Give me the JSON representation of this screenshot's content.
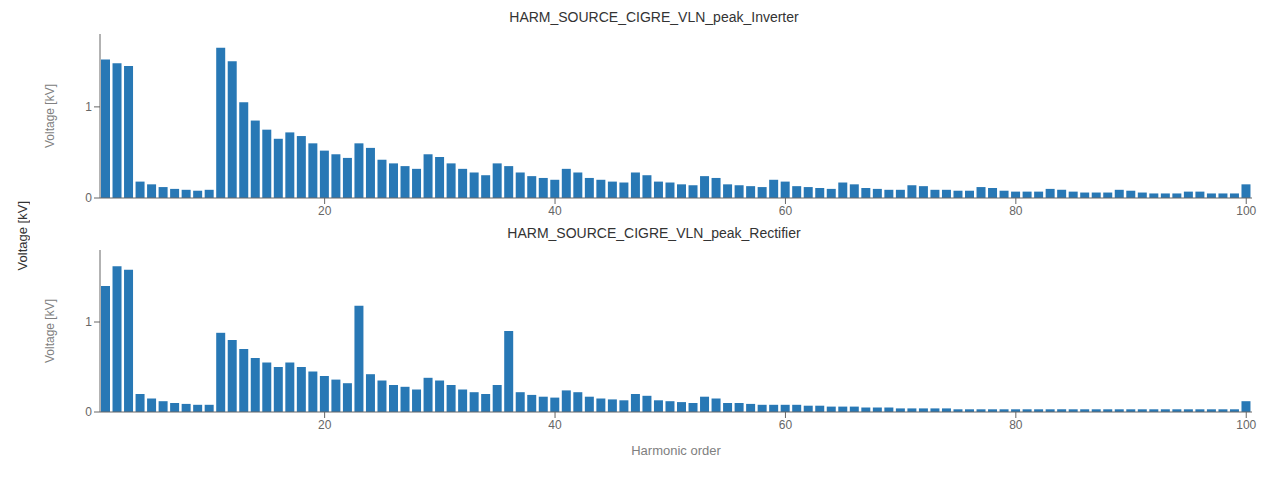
{
  "ylabel": "Voltage [kV]",
  "chart_data": [
    {
      "type": "bar",
      "title": "HARM_SOURCE_CIGRE_VLN_peak_Inverter",
      "ylabel": "Voltage [kV]",
      "x": [
        1,
        2,
        3,
        4,
        5,
        6,
        7,
        8,
        9,
        10,
        11,
        12,
        13,
        14,
        15,
        16,
        17,
        18,
        19,
        20,
        21,
        22,
        23,
        24,
        25,
        26,
        27,
        28,
        29,
        30,
        31,
        32,
        33,
        34,
        35,
        36,
        37,
        38,
        39,
        40,
        41,
        42,
        43,
        44,
        45,
        46,
        47,
        48,
        49,
        50,
        51,
        52,
        53,
        54,
        55,
        56,
        57,
        58,
        59,
        60,
        61,
        62,
        63,
        64,
        65,
        66,
        67,
        68,
        69,
        70,
        71,
        72,
        73,
        74,
        75,
        76,
        77,
        78,
        79,
        80,
        81,
        82,
        83,
        84,
        85,
        86,
        87,
        88,
        89,
        90,
        91,
        92,
        93,
        94,
        95,
        96,
        97,
        98,
        99,
        100
      ],
      "values": [
        1.52,
        1.48,
        1.45,
        0.18,
        0.15,
        0.12,
        0.1,
        0.09,
        0.08,
        0.09,
        1.65,
        1.5,
        1.05,
        0.85,
        0.75,
        0.65,
        0.72,
        0.68,
        0.6,
        0.52,
        0.48,
        0.44,
        0.6,
        0.55,
        0.42,
        0.38,
        0.35,
        0.32,
        0.48,
        0.45,
        0.38,
        0.32,
        0.28,
        0.25,
        0.38,
        0.35,
        0.28,
        0.24,
        0.22,
        0.2,
        0.32,
        0.28,
        0.22,
        0.2,
        0.18,
        0.17,
        0.28,
        0.25,
        0.18,
        0.17,
        0.15,
        0.14,
        0.24,
        0.22,
        0.15,
        0.14,
        0.13,
        0.12,
        0.2,
        0.18,
        0.13,
        0.12,
        0.11,
        0.1,
        0.17,
        0.15,
        0.11,
        0.1,
        0.09,
        0.09,
        0.14,
        0.13,
        0.09,
        0.09,
        0.08,
        0.08,
        0.12,
        0.11,
        0.08,
        0.07,
        0.07,
        0.07,
        0.1,
        0.09,
        0.07,
        0.06,
        0.06,
        0.06,
        0.09,
        0.08,
        0.06,
        0.05,
        0.05,
        0.05,
        0.07,
        0.07,
        0.05,
        0.05,
        0.05,
        0.15
      ],
      "color": "#2878b5",
      "xlim": [
        0.5,
        100.5
      ],
      "xticks": [
        20,
        40,
        60,
        80,
        100
      ],
      "ylim": [
        0,
        1.8
      ],
      "yticks": [
        0,
        1
      ],
      "grid": false
    },
    {
      "type": "bar",
      "title": "HARM_SOURCE_CIGRE_VLN_peak_Rectifier",
      "xlabel": "Harmonic order",
      "ylabel": "Voltage [kV]",
      "x": [
        1,
        2,
        3,
        4,
        5,
        6,
        7,
        8,
        9,
        10,
        11,
        12,
        13,
        14,
        15,
        16,
        17,
        18,
        19,
        20,
        21,
        22,
        23,
        24,
        25,
        26,
        27,
        28,
        29,
        30,
        31,
        32,
        33,
        34,
        35,
        36,
        37,
        38,
        39,
        40,
        41,
        42,
        43,
        44,
        45,
        46,
        47,
        48,
        49,
        50,
        51,
        52,
        53,
        54,
        55,
        56,
        57,
        58,
        59,
        60,
        61,
        62,
        63,
        64,
        65,
        66,
        67,
        68,
        69,
        70,
        71,
        72,
        73,
        74,
        75,
        76,
        77,
        78,
        79,
        80,
        81,
        82,
        83,
        84,
        85,
        86,
        87,
        88,
        89,
        90,
        91,
        92,
        93,
        94,
        95,
        96,
        97,
        98,
        99,
        100
      ],
      "values": [
        1.4,
        1.62,
        1.58,
        0.2,
        0.15,
        0.12,
        0.1,
        0.09,
        0.08,
        0.08,
        0.88,
        0.8,
        0.7,
        0.6,
        0.55,
        0.5,
        0.55,
        0.5,
        0.45,
        0.4,
        0.36,
        0.32,
        1.18,
        0.42,
        0.35,
        0.3,
        0.28,
        0.25,
        0.38,
        0.35,
        0.3,
        0.25,
        0.22,
        0.2,
        0.3,
        0.9,
        0.22,
        0.19,
        0.17,
        0.16,
        0.24,
        0.22,
        0.17,
        0.15,
        0.14,
        0.13,
        0.2,
        0.18,
        0.13,
        0.12,
        0.11,
        0.1,
        0.17,
        0.15,
        0.1,
        0.1,
        0.09,
        0.08,
        0.08,
        0.08,
        0.08,
        0.07,
        0.07,
        0.06,
        0.06,
        0.06,
        0.05,
        0.05,
        0.05,
        0.04,
        0.04,
        0.04,
        0.04,
        0.04,
        0.03,
        0.03,
        0.03,
        0.03,
        0.03,
        0.03,
        0.03,
        0.03,
        0.03,
        0.03,
        0.03,
        0.03,
        0.03,
        0.03,
        0.03,
        0.03,
        0.03,
        0.03,
        0.03,
        0.03,
        0.03,
        0.03,
        0.03,
        0.03,
        0.03,
        0.12
      ],
      "color": "#2878b5",
      "xlim": [
        0.5,
        100.5
      ],
      "xticks": [
        20,
        40,
        60,
        80,
        100
      ],
      "ylim": [
        0,
        1.8
      ],
      "yticks": [
        0,
        1
      ],
      "grid": false
    }
  ]
}
